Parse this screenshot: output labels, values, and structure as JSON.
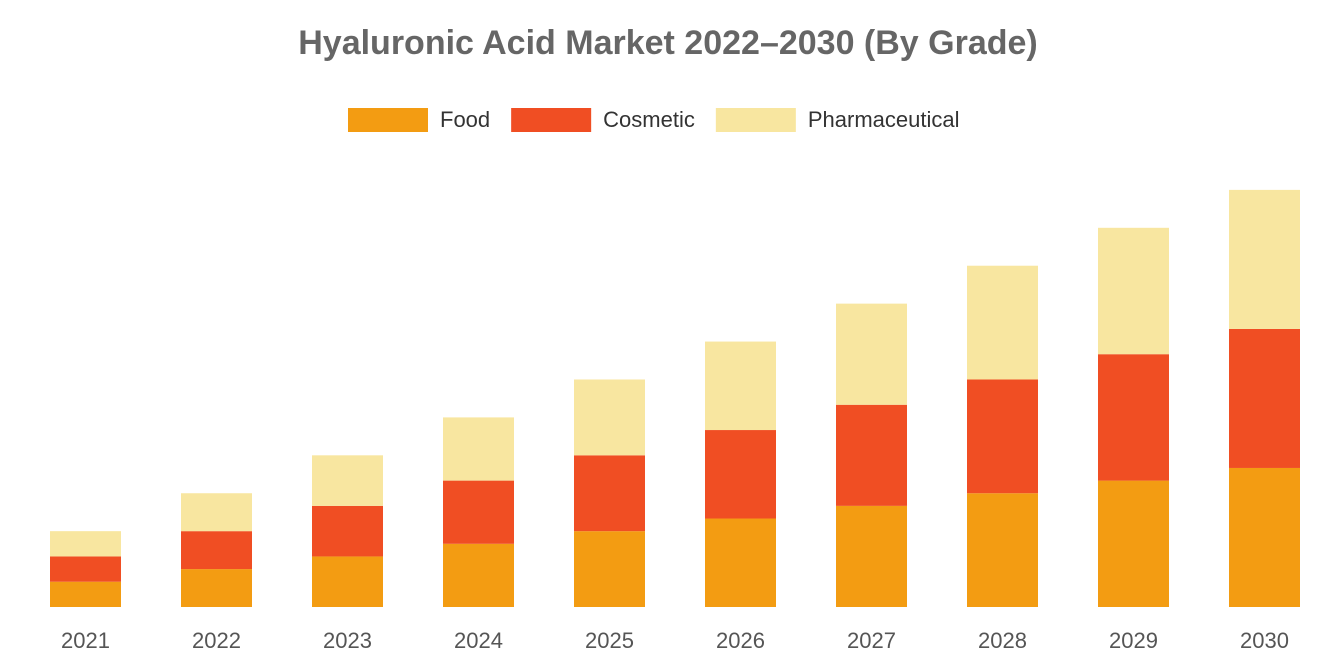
{
  "chart_data": {
    "type": "stacked_bar",
    "title": "Hyaluronic Acid Market 2022–2030 (By Grade)",
    "categories": [
      "2021",
      "2022",
      "2023",
      "2024",
      "2025",
      "2026",
      "2027",
      "2028",
      "2029",
      "2030"
    ],
    "series": [
      {
        "name": "Food",
        "color": "#f39c12",
        "values": [
          2,
          3,
          4,
          5,
          6,
          7,
          8,
          9,
          10,
          11
        ]
      },
      {
        "name": "Cosmetic",
        "color": "#f04e23",
        "values": [
          2,
          3,
          4,
          5,
          6,
          7,
          8,
          9,
          10,
          11
        ]
      },
      {
        "name": "Pharmaceutical",
        "color": "#f8e6a0",
        "values": [
          2,
          3,
          4,
          5,
          6,
          7,
          8,
          9,
          10,
          11
        ]
      }
    ],
    "legend": "top"
  }
}
